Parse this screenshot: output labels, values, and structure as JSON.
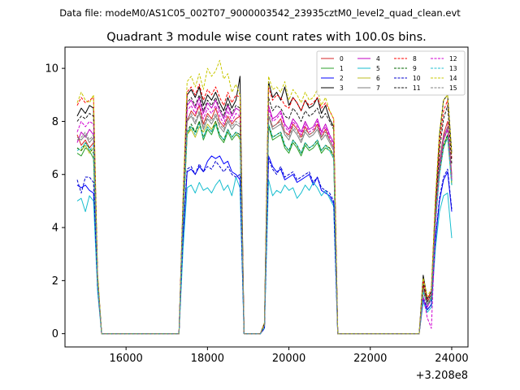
{
  "suptitle": "Data file: modeM0/AS1C05_002T07_9000003542_23935cztM0_level2_quad_clean.evt",
  "chart_data": {
    "type": "line",
    "title": "Quadrant 3 module wise count rates with 100.0s bins.",
    "xlabel": "",
    "ylabel": "",
    "x_offset_label": "+3.208e8",
    "xlim": [
      14500,
      24400
    ],
    "ylim": [
      -0.5,
      10.8
    ],
    "xticks": [
      16000,
      18000,
      20000,
      22000,
      24000
    ],
    "yticks": [
      0,
      2,
      4,
      6,
      8,
      10
    ],
    "legend_position": "top-right",
    "x": [
      14800,
      14900,
      15000,
      15100,
      15200,
      15300,
      15400,
      16000,
      16500,
      17000,
      17300,
      17400,
      17500,
      17600,
      17700,
      17800,
      17900,
      18000,
      18100,
      18200,
      18300,
      18400,
      18500,
      18600,
      18700,
      18800,
      18900,
      19000,
      19300,
      19400,
      19500,
      19600,
      19700,
      19800,
      19900,
      20000,
      20100,
      20200,
      20300,
      20400,
      20500,
      20600,
      20700,
      20800,
      20900,
      21000,
      21100,
      21200,
      21500,
      22000,
      22500,
      23000,
      23200,
      23300,
      23400,
      23500,
      23600,
      23700,
      23800,
      23900,
      24000
    ],
    "series": [
      {
        "name": "0",
        "color": "#d62728",
        "dash": "solid",
        "values": [
          7.5,
          7.1,
          7.3,
          7.0,
          7.2,
          2.0,
          0.0,
          0.0,
          0.0,
          0.0,
          0.0,
          4.5,
          8.0,
          8.4,
          8.2,
          8.6,
          7.9,
          8.3,
          8.1,
          8.5,
          8.0,
          7.8,
          8.2,
          7.9,
          8.1,
          8.2,
          0.0,
          0.0,
          0.0,
          0.3,
          8.2,
          7.8,
          7.9,
          8.1,
          7.6,
          7.5,
          7.9,
          7.7,
          7.4,
          7.8,
          7.5,
          7.6,
          7.9,
          7.4,
          7.7,
          7.3,
          7.0,
          0.0,
          0.0,
          0.0,
          0.0,
          0.0,
          0.0,
          1.8,
          1.2,
          1.5,
          4.5,
          6.5,
          7.5,
          8.0,
          6.0
        ]
      },
      {
        "name": "1",
        "color": "#2ca02c",
        "dash": "solid",
        "values": [
          6.8,
          6.7,
          7.0,
          6.9,
          6.6,
          2.0,
          0.0,
          0.0,
          0.0,
          0.0,
          0.0,
          4.2,
          7.5,
          7.8,
          7.6,
          8.0,
          7.3,
          7.7,
          7.5,
          7.9,
          7.4,
          7.2,
          7.6,
          7.3,
          7.5,
          7.4,
          0.0,
          0.0,
          0.0,
          0.3,
          7.8,
          7.3,
          7.4,
          7.5,
          7.0,
          6.8,
          7.2,
          7.0,
          6.7,
          7.1,
          6.9,
          7.0,
          7.2,
          6.8,
          7.0,
          6.9,
          6.6,
          0.0,
          0.0,
          0.0,
          0.0,
          0.0,
          0.0,
          1.6,
          1.1,
          1.3,
          4.2,
          6.0,
          7.0,
          7.4,
          5.6
        ]
      },
      {
        "name": "2",
        "color": "#0000ff",
        "dash": "solid",
        "values": [
          5.6,
          5.5,
          5.6,
          5.4,
          5.3,
          1.8,
          0.0,
          0.0,
          0.0,
          0.0,
          0.0,
          3.6,
          6.1,
          6.2,
          6.0,
          6.3,
          6.1,
          6.5,
          6.7,
          6.6,
          6.7,
          6.4,
          6.5,
          6.1,
          6.0,
          5.8,
          0.0,
          0.0,
          0.0,
          0.2,
          6.7,
          6.3,
          6.1,
          6.2,
          5.8,
          5.9,
          6.0,
          5.7,
          5.8,
          5.9,
          6.0,
          5.6,
          5.9,
          5.4,
          5.3,
          5.2,
          4.9,
          0.0,
          0.0,
          0.0,
          0.0,
          0.0,
          0.0,
          1.3,
          0.9,
          1.1,
          3.5,
          5.0,
          5.8,
          6.1,
          4.6
        ]
      },
      {
        "name": "3",
        "color": "#000000",
        "dash": "solid",
        "values": [
          8.2,
          8.5,
          8.3,
          8.6,
          8.5,
          2.2,
          0.0,
          0.0,
          0.0,
          0.0,
          0.0,
          5.0,
          9.0,
          9.2,
          8.9,
          9.3,
          8.6,
          9.0,
          8.8,
          9.1,
          8.7,
          8.4,
          8.9,
          8.5,
          8.8,
          9.7,
          0.0,
          0.0,
          0.0,
          0.4,
          9.5,
          8.9,
          9.1,
          8.8,
          9.3,
          8.6,
          8.9,
          8.7,
          8.4,
          8.8,
          8.5,
          8.6,
          8.9,
          8.3,
          8.6,
          8.1,
          7.8,
          0.0,
          0.0,
          0.0,
          0.0,
          0.0,
          0.0,
          2.2,
          1.3,
          1.6,
          5.0,
          7.5,
          8.8,
          9.0,
          6.8
        ]
      },
      {
        "name": "4",
        "color": "#c000c0",
        "dash": "solid",
        "values": [
          7.2,
          7.6,
          7.4,
          7.7,
          7.5,
          2.0,
          0.0,
          0.0,
          0.0,
          0.0,
          0.0,
          4.8,
          8.6,
          8.8,
          8.5,
          8.9,
          8.3,
          8.7,
          8.5,
          8.8,
          8.4,
          8.1,
          8.6,
          8.2,
          8.5,
          8.4,
          0.0,
          0.0,
          0.0,
          0.3,
          8.6,
          8.1,
          8.2,
          8.4,
          7.9,
          7.7,
          8.1,
          7.9,
          7.6,
          8.0,
          7.7,
          7.8,
          8.1,
          7.6,
          7.9,
          7.5,
          7.2,
          0.0,
          0.0,
          0.0,
          0.0,
          0.0,
          0.0,
          1.7,
          1.0,
          1.3,
          4.4,
          6.4,
          7.4,
          7.8,
          5.9
        ]
      },
      {
        "name": "5",
        "color": "#17becf",
        "dash": "solid",
        "values": [
          5.0,
          5.1,
          4.6,
          5.2,
          5.0,
          1.6,
          0.0,
          0.0,
          0.0,
          0.0,
          0.0,
          3.2,
          5.5,
          5.6,
          5.3,
          5.7,
          5.4,
          5.5,
          5.3,
          5.6,
          5.8,
          5.4,
          5.6,
          5.2,
          5.9,
          5.5,
          0.0,
          0.0,
          0.0,
          0.2,
          5.8,
          5.2,
          5.4,
          5.3,
          5.6,
          5.4,
          5.5,
          5.1,
          5.3,
          5.6,
          5.4,
          5.7,
          5.5,
          5.2,
          5.4,
          5.1,
          4.8,
          0.0,
          0.0,
          0.0,
          0.0,
          0.0,
          0.0,
          1.2,
          0.8,
          1.0,
          3.2,
          4.6,
          5.2,
          5.3,
          3.6
        ]
      },
      {
        "name": "6",
        "color": "#bcbd22",
        "dash": "solid",
        "values": [
          7.0,
          6.9,
          7.1,
          6.8,
          7.0,
          2.0,
          0.0,
          0.0,
          0.0,
          0.0,
          0.0,
          4.2,
          7.5,
          7.7,
          7.4,
          7.8,
          7.6,
          7.9,
          7.7,
          8.0,
          7.5,
          7.3,
          7.7,
          7.4,
          7.6,
          7.3,
          0.0,
          0.0,
          0.0,
          0.3,
          7.9,
          7.4,
          7.5,
          7.6,
          7.1,
          6.9,
          7.3,
          7.1,
          6.8,
          7.2,
          7.0,
          7.1,
          7.3,
          6.9,
          7.1,
          7.0,
          6.7,
          0.0,
          0.0,
          0.0,
          0.0,
          0.0,
          0.0,
          1.6,
          1.1,
          1.3,
          4.2,
          6.1,
          7.1,
          7.5,
          5.7
        ]
      },
      {
        "name": "7",
        "color": "#7f7f7f",
        "dash": "solid",
        "values": [
          7.4,
          7.3,
          7.5,
          7.2,
          7.4,
          2.0,
          0.0,
          0.0,
          0.0,
          0.0,
          0.0,
          4.5,
          8.0,
          8.2,
          7.9,
          8.3,
          7.7,
          8.1,
          7.9,
          8.2,
          7.8,
          7.6,
          8.0,
          7.7,
          7.9,
          7.8,
          0.0,
          0.0,
          0.0,
          0.3,
          8.2,
          7.7,
          7.8,
          7.9,
          7.5,
          7.3,
          7.7,
          7.5,
          7.2,
          7.6,
          7.4,
          7.5,
          7.7,
          7.3,
          7.5,
          7.2,
          6.9,
          0.0,
          0.0,
          0.0,
          0.0,
          0.0,
          0.0,
          1.7,
          1.1,
          1.4,
          4.4,
          6.3,
          7.3,
          7.7,
          5.8
        ]
      },
      {
        "name": "8",
        "color": "#ff0000",
        "dash": "dashed",
        "values": [
          8.6,
          8.9,
          8.7,
          8.8,
          8.9,
          2.2,
          0.0,
          0.0,
          0.0,
          0.0,
          0.0,
          5.0,
          9.1,
          9.3,
          9.0,
          9.4,
          8.8,
          9.2,
          9.0,
          9.3,
          8.9,
          8.6,
          9.1,
          8.7,
          9.0,
          8.9,
          0.0,
          0.0,
          0.0,
          0.4,
          9.3,
          8.8,
          9.0,
          8.9,
          8.6,
          8.5,
          8.9,
          8.7,
          8.4,
          8.8,
          8.6,
          8.7,
          8.9,
          8.5,
          8.7,
          8.4,
          8.1,
          0.0,
          0.0,
          0.0,
          0.0,
          0.0,
          0.0,
          2.0,
          1.3,
          1.6,
          4.9,
          7.2,
          8.4,
          8.8,
          6.6
        ]
      },
      {
        "name": "9",
        "color": "#006400",
        "dash": "dashed",
        "values": [
          7.0,
          6.9,
          7.2,
          7.0,
          6.8,
          2.0,
          0.0,
          0.0,
          0.0,
          0.0,
          0.0,
          4.3,
          7.6,
          7.9,
          7.6,
          8.0,
          7.4,
          7.8,
          7.6,
          8.0,
          7.5,
          7.3,
          7.7,
          7.4,
          7.6,
          7.5,
          0.0,
          0.0,
          0.0,
          0.3,
          7.9,
          7.4,
          7.5,
          7.6,
          7.1,
          6.9,
          7.3,
          7.1,
          6.8,
          7.2,
          7.0,
          7.1,
          7.3,
          6.9,
          7.1,
          7.0,
          6.7,
          0.0,
          0.0,
          0.0,
          0.0,
          0.0,
          0.0,
          1.6,
          1.1,
          1.3,
          4.3,
          6.1,
          7.1,
          7.5,
          5.7
        ]
      },
      {
        "name": "10",
        "color": "#0000cd",
        "dash": "dashed",
        "values": [
          5.8,
          5.3,
          5.9,
          5.9,
          5.7,
          1.8,
          0.0,
          0.0,
          0.0,
          0.0,
          0.0,
          3.7,
          6.2,
          6.3,
          6.0,
          6.4,
          6.1,
          6.3,
          6.2,
          6.5,
          6.3,
          6.1,
          6.3,
          6.0,
          5.9,
          6.0,
          0.0,
          0.0,
          0.0,
          0.2,
          6.6,
          6.2,
          6.0,
          6.3,
          5.9,
          6.0,
          6.1,
          5.8,
          5.9,
          6.0,
          6.1,
          5.7,
          5.9,
          5.5,
          5.4,
          5.3,
          5.0,
          0.0,
          0.0,
          0.0,
          0.0,
          0.0,
          0.0,
          1.4,
          0.9,
          1.1,
          3.6,
          5.1,
          5.9,
          6.2,
          4.7
        ]
      },
      {
        "name": "11",
        "color": "#1a1a1a",
        "dash": "dashed",
        "values": [
          8.0,
          8.2,
          8.1,
          8.3,
          8.2,
          2.1,
          0.0,
          0.0,
          0.0,
          0.0,
          0.0,
          4.8,
          8.7,
          8.9,
          8.6,
          9.0,
          8.4,
          8.8,
          8.6,
          8.9,
          8.5,
          8.2,
          8.7,
          8.3,
          8.6,
          8.5,
          0.0,
          0.0,
          0.0,
          0.4,
          8.9,
          8.4,
          8.6,
          8.5,
          8.2,
          8.1,
          8.5,
          8.3,
          8.0,
          8.4,
          8.2,
          8.3,
          8.5,
          8.1,
          8.3,
          8.0,
          7.7,
          0.0,
          0.0,
          0.0,
          0.0,
          0.0,
          0.0,
          1.9,
          1.2,
          1.5,
          4.7,
          6.9,
          8.1,
          8.6,
          6.4
        ]
      },
      {
        "name": "12",
        "color": "#d000d0",
        "dash": "dashed",
        "values": [
          7.6,
          8.0,
          7.8,
          8.0,
          7.9,
          2.0,
          0.0,
          0.0,
          0.0,
          0.0,
          0.0,
          4.7,
          8.4,
          8.6,
          8.3,
          8.7,
          8.1,
          8.5,
          8.3,
          8.6,
          8.2,
          7.9,
          8.4,
          8.0,
          8.3,
          8.2,
          0.0,
          0.0,
          0.0,
          0.3,
          8.5,
          8.0,
          8.1,
          8.3,
          7.8,
          7.6,
          8.0,
          7.8,
          7.5,
          7.9,
          7.6,
          7.7,
          8.0,
          7.5,
          7.8,
          7.4,
          7.1,
          0.0,
          0.0,
          0.0,
          0.0,
          0.0,
          0.0,
          1.4,
          0.6,
          0.2,
          4.0,
          6.2,
          7.3,
          7.7,
          5.8
        ]
      },
      {
        "name": "13",
        "color": "#20c0d0",
        "dash": "dashed",
        "values": [
          6.9,
          7.0,
          7.2,
          6.9,
          7.1,
          2.0,
          0.0,
          0.0,
          0.0,
          0.0,
          0.0,
          4.3,
          7.6,
          7.8,
          7.5,
          7.9,
          7.4,
          7.8,
          7.6,
          7.9,
          7.5,
          7.3,
          7.7,
          7.4,
          7.6,
          7.4,
          0.0,
          0.0,
          0.0,
          0.3,
          7.9,
          7.4,
          7.5,
          7.6,
          7.1,
          6.9,
          7.3,
          7.1,
          6.8,
          7.2,
          7.0,
          7.1,
          7.3,
          6.9,
          7.1,
          6.9,
          6.6,
          0.0,
          0.0,
          0.0,
          0.0,
          0.0,
          0.0,
          1.6,
          1.1,
          1.3,
          4.2,
          6.0,
          7.0,
          7.4,
          5.6
        ]
      },
      {
        "name": "14",
        "color": "#c8c800",
        "dash": "dashed",
        "values": [
          8.7,
          9.1,
          8.8,
          8.7,
          9.0,
          2.3,
          0.0,
          0.0,
          0.0,
          0.0,
          0.0,
          5.2,
          9.5,
          9.7,
          9.3,
          9.8,
          9.2,
          10.0,
          9.7,
          9.9,
          10.3,
          9.6,
          9.8,
          9.1,
          9.4,
          9.0,
          0.0,
          0.0,
          0.0,
          0.4,
          9.7,
          9.2,
          9.3,
          9.1,
          9.5,
          8.8,
          9.2,
          9.0,
          8.7,
          9.1,
          8.8,
          8.9,
          9.2,
          8.6,
          8.9,
          8.4,
          8.1,
          0.0,
          0.0,
          0.0,
          0.0,
          0.0,
          0.0,
          2.1,
          1.4,
          1.7,
          5.1,
          7.6,
          8.8,
          9.0,
          6.8
        ]
      },
      {
        "name": "15",
        "color": "#808080",
        "dash": "dashed",
        "values": [
          7.3,
          7.4,
          7.6,
          7.3,
          7.5,
          2.0,
          0.0,
          0.0,
          0.0,
          0.0,
          0.0,
          4.6,
          8.1,
          8.3,
          8.0,
          8.4,
          7.8,
          8.2,
          8.0,
          8.3,
          7.9,
          7.7,
          8.1,
          7.8,
          8.0,
          7.9,
          0.0,
          0.0,
          0.0,
          0.3,
          8.3,
          7.8,
          7.9,
          8.0,
          7.6,
          7.4,
          7.8,
          7.6,
          7.3,
          7.7,
          7.5,
          7.6,
          7.8,
          7.4,
          7.6,
          7.3,
          7.0,
          0.0,
          0.0,
          0.0,
          0.0,
          0.0,
          0.0,
          1.7,
          1.1,
          1.4,
          4.4,
          6.4,
          7.4,
          7.8,
          5.9
        ]
      }
    ]
  }
}
